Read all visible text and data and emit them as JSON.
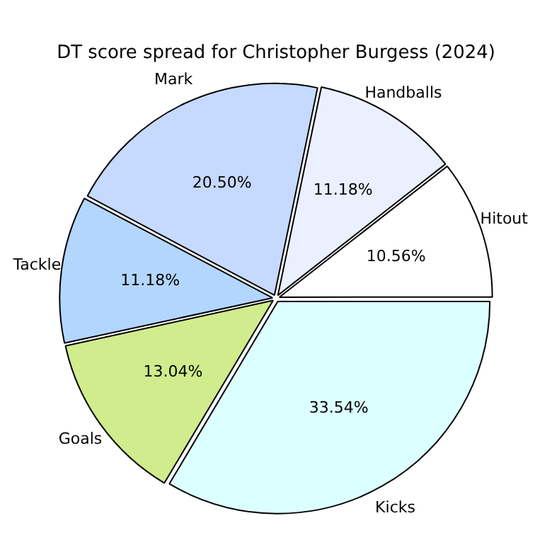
{
  "chart_data": {
    "type": "pie",
    "title": "DT score spread for Christopher Burgess (2024)",
    "categories": [
      "Kicks",
      "Goals",
      "Tackle",
      "Mark",
      "Handballs",
      "Hitout"
    ],
    "values": [
      33.54,
      13.04,
      11.18,
      20.5,
      11.18,
      10.56
    ],
    "value_labels": [
      "33.54%",
      "13.04%",
      "11.18%",
      "20.50%",
      "11.18%",
      "10.56%"
    ],
    "colors": [
      "#dcffff",
      "#d0ec8c",
      "#b3d6ff",
      "#c6d9ff",
      "#eaf0ff",
      "#ffffff"
    ],
    "legend": false
  }
}
